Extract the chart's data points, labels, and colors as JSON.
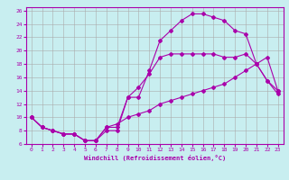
{
  "xlabel": "Windchill (Refroidissement éolien,°C)",
  "background_color": "#c8eef0",
  "grid_color": "#aaaaaa",
  "line_color": "#aa00aa",
  "xlim": [
    -0.5,
    23.5
  ],
  "ylim": [
    6,
    26.5
  ],
  "xticks": [
    0,
    1,
    2,
    3,
    4,
    5,
    6,
    7,
    8,
    9,
    10,
    11,
    12,
    13,
    14,
    15,
    16,
    17,
    18,
    19,
    20,
    21,
    22,
    23
  ],
  "yticks": [
    6,
    8,
    10,
    12,
    14,
    16,
    18,
    20,
    22,
    24,
    26
  ],
  "curve1_x": [
    0,
    1,
    2,
    3,
    4,
    5,
    6,
    7,
    8,
    9,
    10,
    11,
    12,
    13,
    14,
    15,
    16,
    17,
    18,
    19,
    20,
    21,
    22,
    23
  ],
  "curve1_y": [
    10,
    8.5,
    8,
    7.5,
    7.5,
    6.5,
    6.5,
    8,
    8,
    13,
    13,
    17,
    21.5,
    23,
    24.5,
    25.5,
    25.5,
    25,
    24.5,
    23,
    22.5,
    18,
    15.5,
    13.5
  ],
  "curve2_x": [
    0,
    1,
    2,
    3,
    4,
    5,
    6,
    7,
    8,
    9,
    10,
    11,
    12,
    13,
    14,
    15,
    16,
    17,
    18,
    19,
    20,
    21,
    22,
    23
  ],
  "curve2_y": [
    10,
    8.5,
    8,
    7.5,
    7.5,
    6.5,
    6.5,
    8.5,
    9,
    10,
    10.5,
    11,
    12,
    12.5,
    13,
    13.5,
    14,
    14.5,
    15,
    16,
    17,
    18,
    19,
    14
  ],
  "curve3_x": [
    0,
    1,
    2,
    3,
    4,
    5,
    6,
    7,
    8,
    9,
    10,
    11,
    12,
    13,
    14,
    15,
    16,
    17,
    18,
    19,
    20,
    21,
    22,
    23
  ],
  "curve3_y": [
    10,
    8.5,
    8,
    7.5,
    7.5,
    6.5,
    6.5,
    8.5,
    8.5,
    13,
    14.5,
    16.5,
    19,
    19.5,
    19.5,
    19.5,
    19.5,
    19.5,
    19,
    19,
    19.5,
    18,
    15.5,
    14
  ],
  "marker_size": 2.0,
  "line_width": 0.8,
  "xlabel_fontsize": 5.0,
  "tick_fontsize": 4.5
}
